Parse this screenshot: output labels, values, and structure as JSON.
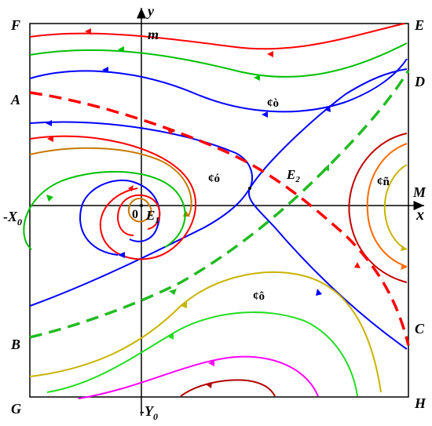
{
  "labels": {
    "y_axis": "y",
    "x_axis": "x",
    "m": "m",
    "F": "F",
    "E": "E",
    "A": "A",
    "D": "D",
    "M": "M",
    "neg_x0": "-X",
    "neg_x0_sub": "0",
    "origin": "0",
    "E1": "E",
    "E1_sub": "1",
    "E2": "E",
    "E2_sub": "2",
    "B": "B",
    "C": "C",
    "G": "G",
    "H": "H",
    "neg_y0": "-Y",
    "neg_y0_sub": "0"
  },
  "regions": {
    "top": "¢ò",
    "middle_left": "¢ó",
    "right": "¢ñ",
    "bottom": "¢ô"
  },
  "colors": {
    "red": "#ff0000",
    "green": "#00c000",
    "blue": "#0000ff",
    "orange": "#c87800",
    "olive": "#c8b400",
    "lime": "#22dd22",
    "magenta": "#ff00ff",
    "darkred": "#b00000",
    "dashed_red": "#ff0000",
    "dashed_green": "#22bb22"
  }
}
